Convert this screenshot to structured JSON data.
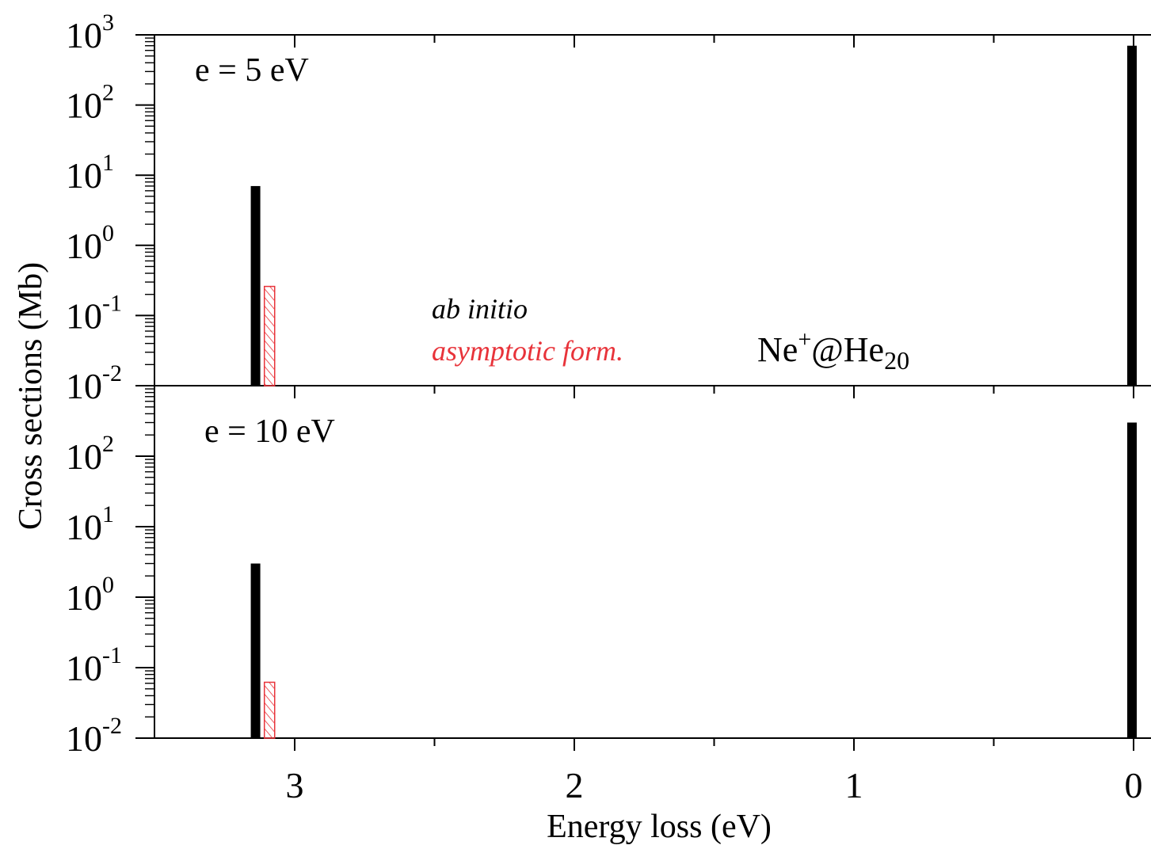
{
  "chart_data": {
    "type": "bar",
    "molecule": {
      "base": "Ne",
      "sup": "+",
      "mid": "@He",
      "sub": "20"
    },
    "xlabel": "Energy loss (eV)",
    "ylabel": "Cross sections (Mb)",
    "x_ticks": [
      "3",
      "2",
      "1",
      "0"
    ],
    "xlim": [
      3.5,
      0
    ],
    "x_reversed": true,
    "y_scale": "log",
    "legend": [
      {
        "label": "ab initio",
        "color": "#000000"
      },
      {
        "label": "asymptotic form.",
        "color": "#e8333a"
      }
    ],
    "panels": [
      {
        "label": "e = 5 eV",
        "ylim_exp": [
          -2,
          3
        ],
        "y_tick_exps": [
          "-2",
          "-1",
          "0",
          "1",
          "2",
          "3"
        ],
        "series": [
          {
            "name": "ab initio",
            "x": [
              3.14,
              0.0
            ],
            "values": [
              7.0,
              700
            ]
          },
          {
            "name": "asymptotic form.",
            "x": [
              3.09
            ],
            "values": [
              0.26
            ]
          }
        ]
      },
      {
        "label": "e = 10 eV",
        "ylim_exp": [
          -2,
          3
        ],
        "y_tick_exps": [
          "-2",
          "-1",
          "0",
          "1",
          "2"
        ],
        "series": [
          {
            "name": "ab initio",
            "x": [
              3.14,
              0.0
            ],
            "values": [
              3.0,
              300
            ]
          },
          {
            "name": "asymptotic form.",
            "x": [
              3.09
            ],
            "values": [
              0.062
            ]
          }
        ]
      }
    ]
  }
}
